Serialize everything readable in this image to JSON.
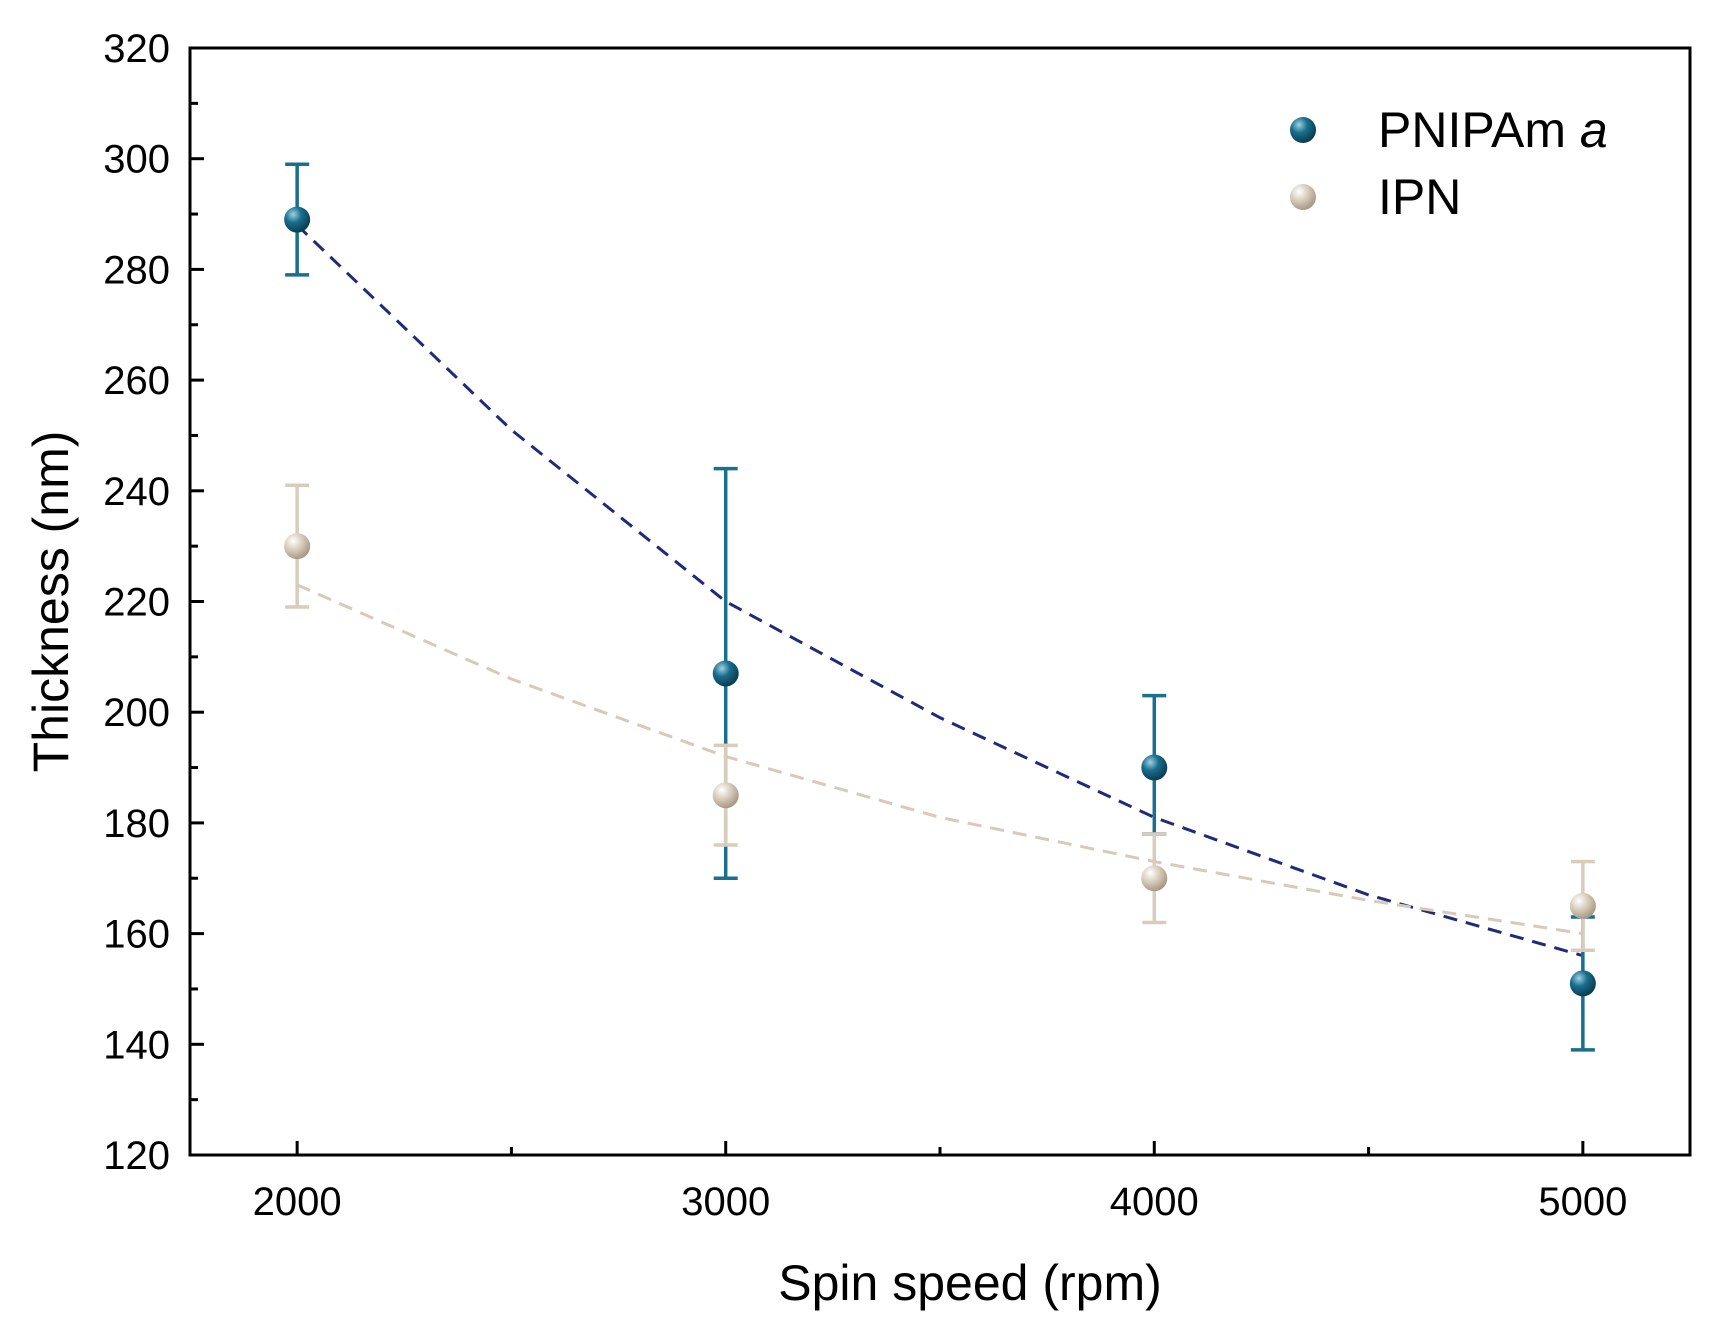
{
  "chart_data": {
    "type": "scatter",
    "xlabel": "Spin speed (rpm)",
    "ylabel": "Thickness (nm)",
    "xlim": [
      1750,
      5250
    ],
    "ylim": [
      120,
      320
    ],
    "x_ticks": [
      2000,
      3000,
      4000,
      5000
    ],
    "x_minor_ticks": [
      2500,
      3500,
      4500
    ],
    "y_ticks": [
      120,
      140,
      160,
      180,
      200,
      220,
      240,
      260,
      280,
      300,
      320
    ],
    "y_minor_ticks": [
      130,
      150,
      170,
      190,
      210,
      230,
      250,
      270,
      290,
      310
    ],
    "grid": false,
    "legend_position": "top-right",
    "series": [
      {
        "name": "PNIPAm",
        "name_suffix": "a",
        "color": "#1a6e8e",
        "fit_color": "#1f2a7a",
        "x": [
          2000,
          3000,
          4000,
          5000
        ],
        "y": [
          289,
          207,
          190,
          151
        ],
        "err_low": [
          279,
          170,
          178,
          139
        ],
        "err_high": [
          299,
          244,
          203,
          163
        ],
        "fit": {
          "style": "dashed",
          "x": [
            2000,
            2500,
            3000,
            3500,
            4000,
            4500,
            5000
          ],
          "y": [
            288,
            251,
            220,
            199,
            181,
            167,
            156
          ]
        }
      },
      {
        "name": "IPN",
        "color": "#d8ccbb",
        "fit_color": "#d6cab8",
        "x": [
          2000,
          3000,
          4000,
          5000
        ],
        "y": [
          230,
          185,
          170,
          165
        ],
        "err_low": [
          219,
          176,
          162,
          157
        ],
        "err_high": [
          241,
          194,
          178,
          173
        ],
        "fit": {
          "style": "dashed",
          "x": [
            2000,
            2500,
            3000,
            3500,
            4000,
            4500,
            5000
          ],
          "y": [
            223,
            206,
            192,
            181,
            173,
            166,
            160
          ]
        }
      }
    ]
  }
}
